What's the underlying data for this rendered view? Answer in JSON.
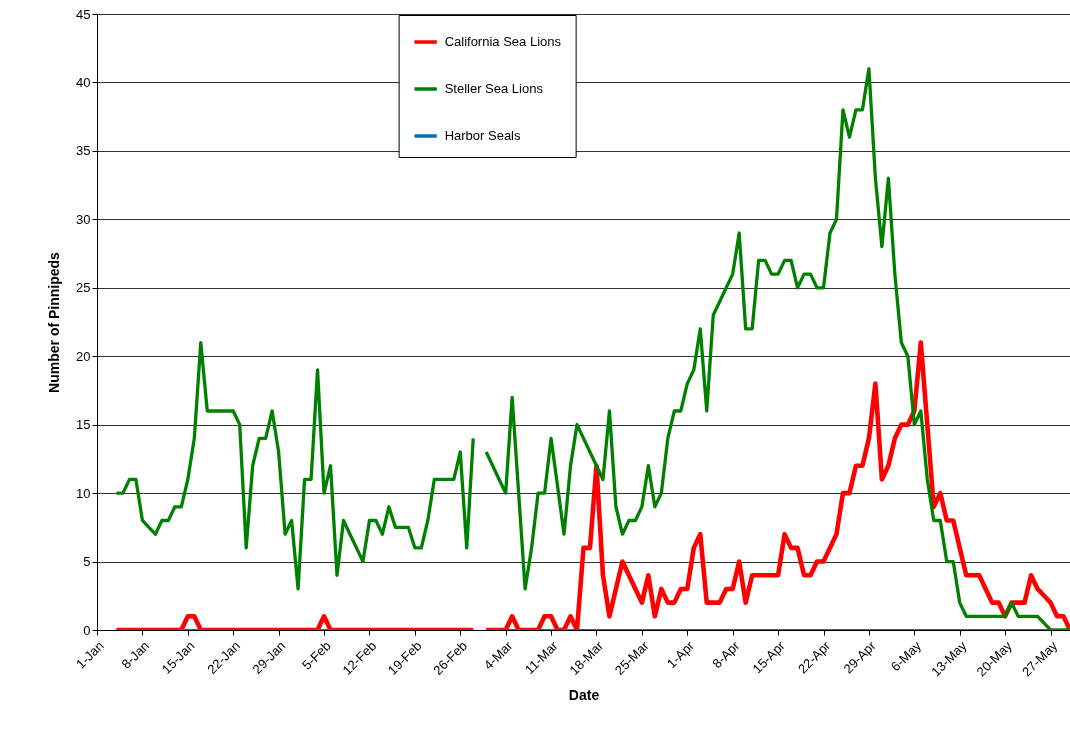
{
  "chart_data": {
    "type": "line",
    "xlabel": "Date",
    "ylabel": "Number of Pinnipeds",
    "x": [
      "--01-04",
      "--01-05",
      "--01-06",
      "--01-07",
      "--01-08",
      "--01-09",
      "--01-10",
      "--01-11",
      "--01-12",
      "--01-13",
      "--01-14",
      "--01-15",
      "--01-16",
      "--01-17",
      "--01-18",
      "--01-19",
      "--01-20",
      "--01-21",
      "--01-22",
      "--01-23",
      "--01-24",
      "--01-25",
      "--01-26",
      "--01-27",
      "--01-28",
      "--01-29",
      "--01-30",
      "--01-31",
      "--02-01",
      "--02-02",
      "--02-03",
      "--02-04",
      "--02-05",
      "--02-06",
      "--02-07",
      "--02-08",
      "--02-09",
      "--02-10",
      "--02-11",
      "--02-12",
      "--02-13",
      "--02-14",
      "--02-15",
      "--02-16",
      "--02-17",
      "--02-18",
      "--02-19",
      "--02-20",
      "--02-21",
      "--02-22",
      "--02-23",
      "--02-24",
      "--02-25",
      "--02-26",
      "--02-27",
      "--02-28",
      "--02-29",
      "--03-01",
      "--03-02",
      "--03-03",
      "--03-04",
      "--03-05",
      "--03-06",
      "--03-07",
      "--03-08",
      "--03-09",
      "--03-10",
      "--03-11",
      "--03-12",
      "--03-13",
      "--03-14",
      "--03-15",
      "--03-16",
      "--03-17",
      "--03-18",
      "--03-19",
      "--03-20",
      "--03-21",
      "--03-22",
      "--03-23",
      "--03-24",
      "--03-25",
      "--03-26",
      "--03-27",
      "--03-28",
      "--03-29",
      "--03-30",
      "--03-31",
      "--04-01",
      "--04-02",
      "--04-03",
      "--04-04",
      "--04-05",
      "--04-06",
      "--04-07",
      "--04-08",
      "--04-09",
      "--04-10",
      "--04-11",
      "--04-12",
      "--04-13",
      "--04-14",
      "--04-15",
      "--04-16",
      "--04-17",
      "--04-18",
      "--04-19",
      "--04-20",
      "--04-21",
      "--04-22",
      "--04-23",
      "--04-24",
      "--04-25",
      "--04-26",
      "--04-27",
      "--04-28",
      "--04-29",
      "--04-30",
      "--05-01",
      "--05-02",
      "--05-03",
      "--05-04",
      "--05-05",
      "--05-06",
      "--05-07",
      "--05-08",
      "--05-09",
      "--05-10",
      "--05-11",
      "--05-12",
      "--05-13",
      "--05-14",
      "--05-15",
      "--05-16",
      "--05-17",
      "--05-18",
      "--05-19",
      "--05-20",
      "--05-21",
      "--05-22",
      "--05-23",
      "--05-24",
      "--05-25",
      "--05-26",
      "--05-27",
      "--05-28",
      "--05-29",
      "--05-30"
    ],
    "series": [
      {
        "name": "California Sea Lions",
        "color": "#ff0000",
        "values": [
          0,
          0,
          0,
          0,
          0,
          0,
          0,
          0,
          0,
          0,
          0,
          1,
          1,
          0,
          0,
          0,
          0,
          0,
          0,
          0,
          0,
          0,
          0,
          0,
          0,
          0,
          0,
          0,
          0,
          0,
          0,
          0,
          1,
          0,
          0,
          0,
          0,
          0,
          0,
          0,
          0,
          0,
          0,
          0,
          0,
          0,
          0,
          0,
          0,
          0,
          0,
          0,
          0,
          0,
          0,
          0,
          null,
          0,
          0,
          0,
          0,
          1,
          0,
          0,
          0,
          0,
          1,
          1,
          0,
          0,
          1,
          0,
          6,
          6,
          12,
          4,
          1,
          3,
          5,
          4,
          3,
          2,
          4,
          1,
          3,
          2,
          2,
          3,
          3,
          6,
          7,
          2,
          2,
          2,
          3,
          3,
          5,
          2,
          4,
          4,
          4,
          4,
          4,
          7,
          6,
          6,
          4,
          4,
          5,
          5,
          6,
          7,
          10,
          10,
          12,
          12,
          14,
          18,
          11,
          12,
          14,
          15,
          15,
          16,
          21,
          15,
          9,
          10,
          8,
          8,
          6,
          4,
          4,
          4,
          3,
          2,
          2,
          1,
          2,
          2,
          2,
          4,
          3,
          2.5,
          2,
          1,
          1,
          0
        ]
      },
      {
        "name": "Steller Sea Lions",
        "color": "#008000",
        "values": [
          10,
          10,
          11,
          11,
          8,
          7.5,
          7,
          8,
          8,
          9,
          9,
          11,
          14,
          21,
          16,
          16,
          16,
          16,
          16,
          15,
          6,
          12,
          14,
          14,
          16,
          13,
          7,
          8,
          3,
          11,
          11,
          19,
          10,
          12,
          4,
          8,
          7,
          6,
          5,
          8,
          8,
          7,
          9,
          7.5,
          7.5,
          7.5,
          6,
          6,
          8,
          11,
          11,
          11,
          11,
          13,
          6,
          14,
          null,
          13,
          12,
          11,
          10,
          17,
          10,
          3,
          6,
          10,
          10,
          14,
          10.5,
          7,
          12,
          15,
          14,
          13,
          12,
          11,
          16,
          9,
          7,
          8,
          8,
          9,
          12,
          9,
          10,
          14,
          16,
          16,
          18,
          19,
          22,
          16,
          23,
          24,
          25,
          26,
          29,
          22,
          22,
          27,
          27,
          26,
          26,
          27,
          27,
          25,
          26,
          26,
          25,
          25,
          29,
          30,
          38,
          36,
          38,
          38,
          41,
          33,
          28,
          33,
          26,
          21,
          20,
          15,
          16,
          11,
          8,
          8,
          5,
          5,
          2,
          1,
          1,
          1,
          1,
          1,
          1,
          1,
          2,
          1,
          1,
          1,
          1,
          0.5,
          0,
          0,
          0,
          0
        ]
      },
      {
        "name": "Harbor Seals",
        "color": "#0070c0",
        "values": [
          0,
          0,
          0,
          0,
          0,
          0,
          0,
          0,
          0,
          0,
          0,
          0,
          0,
          0,
          0,
          0,
          0,
          0,
          0,
          0,
          0,
          0,
          0,
          0,
          0,
          0,
          0,
          0,
          0,
          0,
          0,
          0,
          0,
          0,
          0,
          0,
          0,
          0,
          0,
          0,
          0,
          0,
          0,
          0,
          0,
          0,
          0,
          0,
          0,
          0,
          0,
          0,
          0,
          0,
          0,
          0,
          null,
          0,
          0,
          0,
          0,
          0,
          0,
          0,
          0,
          0,
          0,
          0,
          0,
          0,
          0,
          0,
          0,
          0,
          0,
          0,
          0,
          0,
          0,
          0,
          0,
          0,
          0,
          0,
          0,
          0,
          0,
          0,
          0,
          0,
          0,
          0,
          0,
          0,
          0,
          0,
          0,
          0,
          0,
          0,
          0,
          0,
          0,
          0,
          0,
          0,
          0,
          0,
          0,
          0,
          0,
          0,
          0,
          0,
          0,
          0,
          0,
          0,
          0,
          0,
          0,
          0,
          0,
          0,
          0,
          0,
          0,
          0,
          0,
          0,
          0,
          0,
          0,
          0,
          0,
          0,
          0,
          0,
          0,
          0,
          0,
          0,
          0,
          0,
          0,
          0,
          0,
          0
        ]
      }
    ],
    "xlim": [
      "--01-01",
      "--05-30"
    ],
    "xticks": [
      {
        "value": "--01-01",
        "label": "1-Jan"
      },
      {
        "value": "--01-08",
        "label": "8-Jan"
      },
      {
        "value": "--01-15",
        "label": "15-Jan"
      },
      {
        "value": "--01-22",
        "label": "22-Jan"
      },
      {
        "value": "--01-29",
        "label": "29-Jan"
      },
      {
        "value": "--02-05",
        "label": "5-Feb"
      },
      {
        "value": "--02-12",
        "label": "12-Feb"
      },
      {
        "value": "--02-19",
        "label": "19-Feb"
      },
      {
        "value": "--02-26",
        "label": "26-Feb"
      },
      {
        "value": "--03-04",
        "label": "4-Mar"
      },
      {
        "value": "--03-11",
        "label": "11-Mar"
      },
      {
        "value": "--03-18",
        "label": "18-Mar"
      },
      {
        "value": "--03-25",
        "label": "25-Mar"
      },
      {
        "value": "--04-01",
        "label": "1-Apr"
      },
      {
        "value": "--04-08",
        "label": "8-Apr"
      },
      {
        "value": "--04-15",
        "label": "15-Apr"
      },
      {
        "value": "--04-22",
        "label": "22-Apr"
      },
      {
        "value": "--04-29",
        "label": "29-Apr"
      },
      {
        "value": "--05-06",
        "label": "6-May"
      },
      {
        "value": "--05-13",
        "label": "13-May"
      },
      {
        "value": "--05-20",
        "label": "20-May"
      },
      {
        "value": "--05-27",
        "label": "27-May"
      }
    ],
    "ylim": [
      0,
      45
    ],
    "yticks": [
      0,
      5,
      10,
      15,
      20,
      25,
      30,
      35,
      40,
      45
    ],
    "grid": "y",
    "legend": "top",
    "line_style": "solid"
  }
}
